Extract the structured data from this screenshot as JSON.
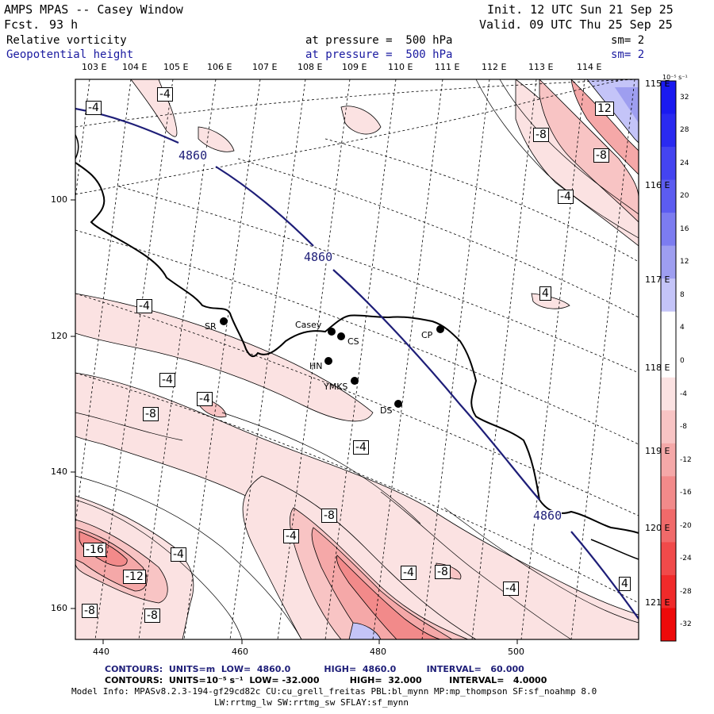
{
  "header": {
    "title": "AMPS MPAS -- Casey Window",
    "forecast_label": "Fcst.",
    "forecast_value": "93 h",
    "init": "Init. 12 UTC Sun 21 Sep 25",
    "valid": "Valid. 09 UTC Thu 25 Sep 25"
  },
  "fields": [
    {
      "name": "Relative vorticity",
      "level": "at pressure =  500 hPa",
      "smooth": "sm= 2",
      "color": "#000000"
    },
    {
      "name": "Geopotential height",
      "level": "at pressure =  500 hPa",
      "smooth": "sm= 2",
      "color": "#1a1aa0"
    }
  ],
  "longitude_labels_top": [
    "103 E",
    "104 E",
    "105 E",
    "106 E",
    "107 E",
    "108 E",
    "109 E",
    "110 E",
    "111 E",
    "112 E",
    "113 E",
    "114 E",
    "115 E"
  ],
  "longitude_labels_right": [
    "116 E",
    "117 E",
    "118 E",
    "119 E",
    "120 E",
    "121 E"
  ],
  "x_axis": {
    "ticks": [
      "440",
      "460",
      "480",
      "500"
    ]
  },
  "y_axis": {
    "ticks": [
      "100",
      "120",
      "140",
      "160"
    ]
  },
  "stations": [
    {
      "name": "SR"
    },
    {
      "name": "Casey"
    },
    {
      "name": "CS"
    },
    {
      "name": "CP"
    },
    {
      "name": "HN"
    },
    {
      "name": "YMKS"
    },
    {
      "name": "DS"
    }
  ],
  "height_contour_labels": [
    "4860",
    "4860",
    "4860"
  ],
  "vorticity_labels": [
    "-4",
    "-4",
    "-8",
    "12",
    "-8",
    "-4",
    "4",
    "-4",
    "-4",
    "-4",
    "-8",
    "-4",
    "-8",
    "-4",
    "-16",
    "-4",
    "-12",
    "-8",
    "-8",
    "-4",
    "-8",
    "-4",
    "4"
  ],
  "colorbar": {
    "unit_label": "10⁻⁵ s⁻¹",
    "levels": [
      "32",
      "28",
      "24",
      "20",
      "16",
      "12",
      "8",
      "4",
      "0",
      "-4",
      "-8",
      "-12",
      "-16",
      "-20",
      "-24",
      "-28",
      "-32"
    ],
    "colors": [
      "#1a1af0",
      "#2a2af0",
      "#4444f0",
      "#5c5cf0",
      "#7c7cf0",
      "#9e9ef0",
      "#c4c4f8",
      "#ffffff",
      "#ffffff",
      "#fbe2e2",
      "#f8c4c4",
      "#f5a8a8",
      "#f28a8a",
      "#f06a6a",
      "#f04a4a",
      "#f02a2a",
      "#ee0a0a"
    ]
  },
  "footer": {
    "contours_height": "CONTOURS:  UNITS=m  LOW=  4860.0           HIGH=  4860.0          INTERVAL=   60.000",
    "contours_vort": "CONTOURS:  UNITS=10⁻⁵ s⁻¹  LOW= -32.000          HIGH=  32.000         INTERVAL=   4.0000",
    "model_info": "Model Info: MPASv8.2.3-194-gf29cd82c CU:cu_grell_freitas PBL:bl_mynn MP:mp_thompson SF:sf_noahmp 8.0",
    "model_info2": "LW:rrtmg_lw SW:rrtmg_sw SFLAY:sf_mynn"
  }
}
